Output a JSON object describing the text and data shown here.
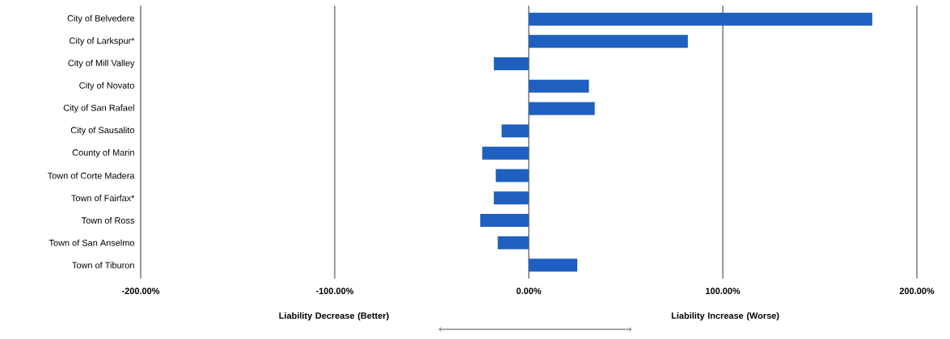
{
  "chart_data": {
    "type": "bar",
    "orientation": "horizontal",
    "categories": [
      "City of Belvedere",
      "City of Larkspur*",
      "City of Mill Valley",
      "City of Novato",
      "City of San Rafael",
      "City of Sausalito",
      "County of Marin",
      "Town of Corte Madera",
      "Town of Fairfax*",
      "Town of Ross",
      "Town of San Anselmo",
      "Town of Tiburon"
    ],
    "values": [
      177,
      82,
      -18,
      31,
      34,
      -14,
      -24,
      -17,
      -18,
      -25,
      -16,
      25
    ],
    "color": "#1f5fbf",
    "xlim": [
      -200,
      200
    ],
    "xticks": [
      {
        "value": -200,
        "label": "-200.00%"
      },
      {
        "value": -100,
        "label": "-100.00%"
      },
      {
        "value": 0,
        "label": "0.00%"
      },
      {
        "value": 100,
        "label": "100.00%"
      },
      {
        "value": 200,
        "label": "200.00%"
      }
    ],
    "grid": "x",
    "annotations": [
      "Liability Decrease (Better)",
      "Liability Increase (Worse)"
    ]
  }
}
